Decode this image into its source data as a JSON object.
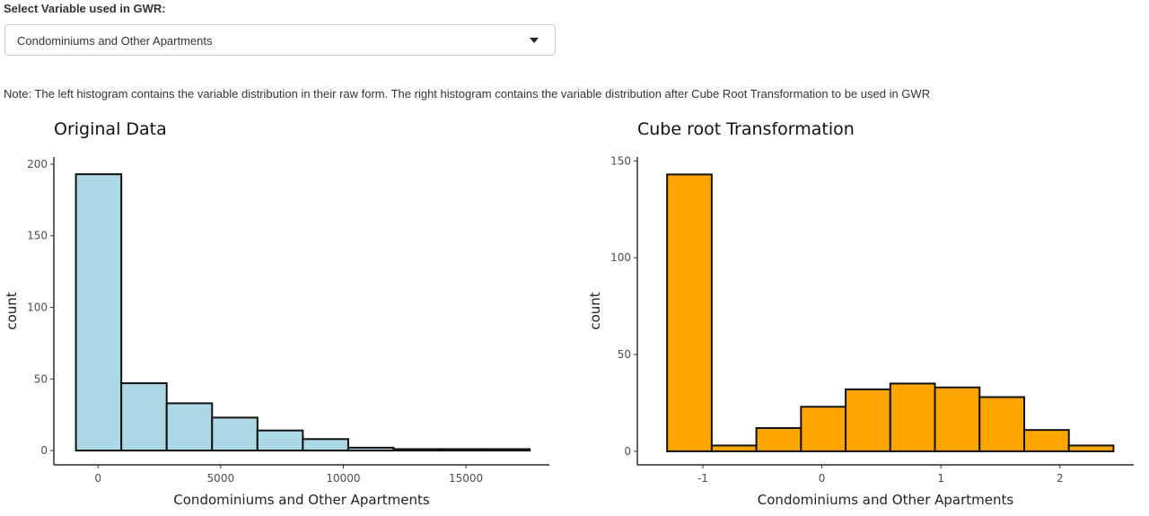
{
  "select": {
    "label": "Select Variable used in GWR:",
    "value": "Condominiums and Other Apartments",
    "icon": "caret-down-icon"
  },
  "note": "Note: The left histogram contains the variable distribution in their raw form. The right histogram contains the variable distribution after Cube Root Transformation to be used in GWR",
  "colors": {
    "left_fill": "#add8e6",
    "right_fill": "#ffa500",
    "outline": "#111111"
  },
  "chart_data": [
    {
      "type": "bar",
      "title": "Original Data",
      "xlabel": "Condominiums and Other Apartments",
      "ylabel": "count",
      "xlim": [
        -1800,
        18400
      ],
      "ylim": [
        -10,
        205
      ],
      "xticks": [
        0,
        5000,
        10000,
        15000
      ],
      "xticklabels": [
        "0",
        "5000",
        "10000",
        "15000"
      ],
      "yticks": [
        0,
        50,
        100,
        150,
        200
      ],
      "yticklabels": [
        "0",
        "50",
        "100",
        "150",
        "200"
      ],
      "bin_width": 1850,
      "bins": [
        {
          "x0": -900,
          "x1": 950,
          "count": 193
        },
        {
          "x0": 950,
          "x1": 2800,
          "count": 47
        },
        {
          "x0": 2800,
          "x1": 4650,
          "count": 33
        },
        {
          "x0": 4650,
          "x1": 6500,
          "count": 23
        },
        {
          "x0": 6500,
          "x1": 8350,
          "count": 14
        },
        {
          "x0": 8350,
          "x1": 10200,
          "count": 8
        },
        {
          "x0": 10200,
          "x1": 12050,
          "count": 2
        },
        {
          "x0": 12050,
          "x1": 13900,
          "count": 1
        },
        {
          "x0": 13900,
          "x1": 15750,
          "count": 1
        },
        {
          "x0": 15750,
          "x1": 17600,
          "count": 1
        }
      ],
      "fill": "#add8e6",
      "grid": false
    },
    {
      "type": "bar",
      "title": "Cube root Transformation",
      "xlabel": "Condominiums and Other Apartments",
      "ylabel": "count",
      "xlim": [
        -1.55,
        2.62
      ],
      "ylim": [
        -7,
        152
      ],
      "xticks": [
        -1,
        0,
        1,
        2
      ],
      "xticklabels": [
        "-1",
        "0",
        "1",
        "2"
      ],
      "yticks": [
        0,
        50,
        100,
        150
      ],
      "yticklabels": [
        "0",
        "50",
        "100",
        "150"
      ],
      "bin_width": 0.375,
      "bins": [
        {
          "x0": -1.3,
          "x1": -0.925,
          "count": 143
        },
        {
          "x0": -0.925,
          "x1": -0.55,
          "count": 3
        },
        {
          "x0": -0.55,
          "x1": -0.175,
          "count": 12
        },
        {
          "x0": -0.175,
          "x1": 0.2,
          "count": 23
        },
        {
          "x0": 0.2,
          "x1": 0.575,
          "count": 32
        },
        {
          "x0": 0.575,
          "x1": 0.95,
          "count": 35
        },
        {
          "x0": 0.95,
          "x1": 1.325,
          "count": 33
        },
        {
          "x0": 1.325,
          "x1": 1.7,
          "count": 28
        },
        {
          "x0": 1.7,
          "x1": 2.075,
          "count": 11
        },
        {
          "x0": 2.075,
          "x1": 2.45,
          "count": 3
        }
      ],
      "fill": "#ffa500",
      "grid": false
    }
  ]
}
